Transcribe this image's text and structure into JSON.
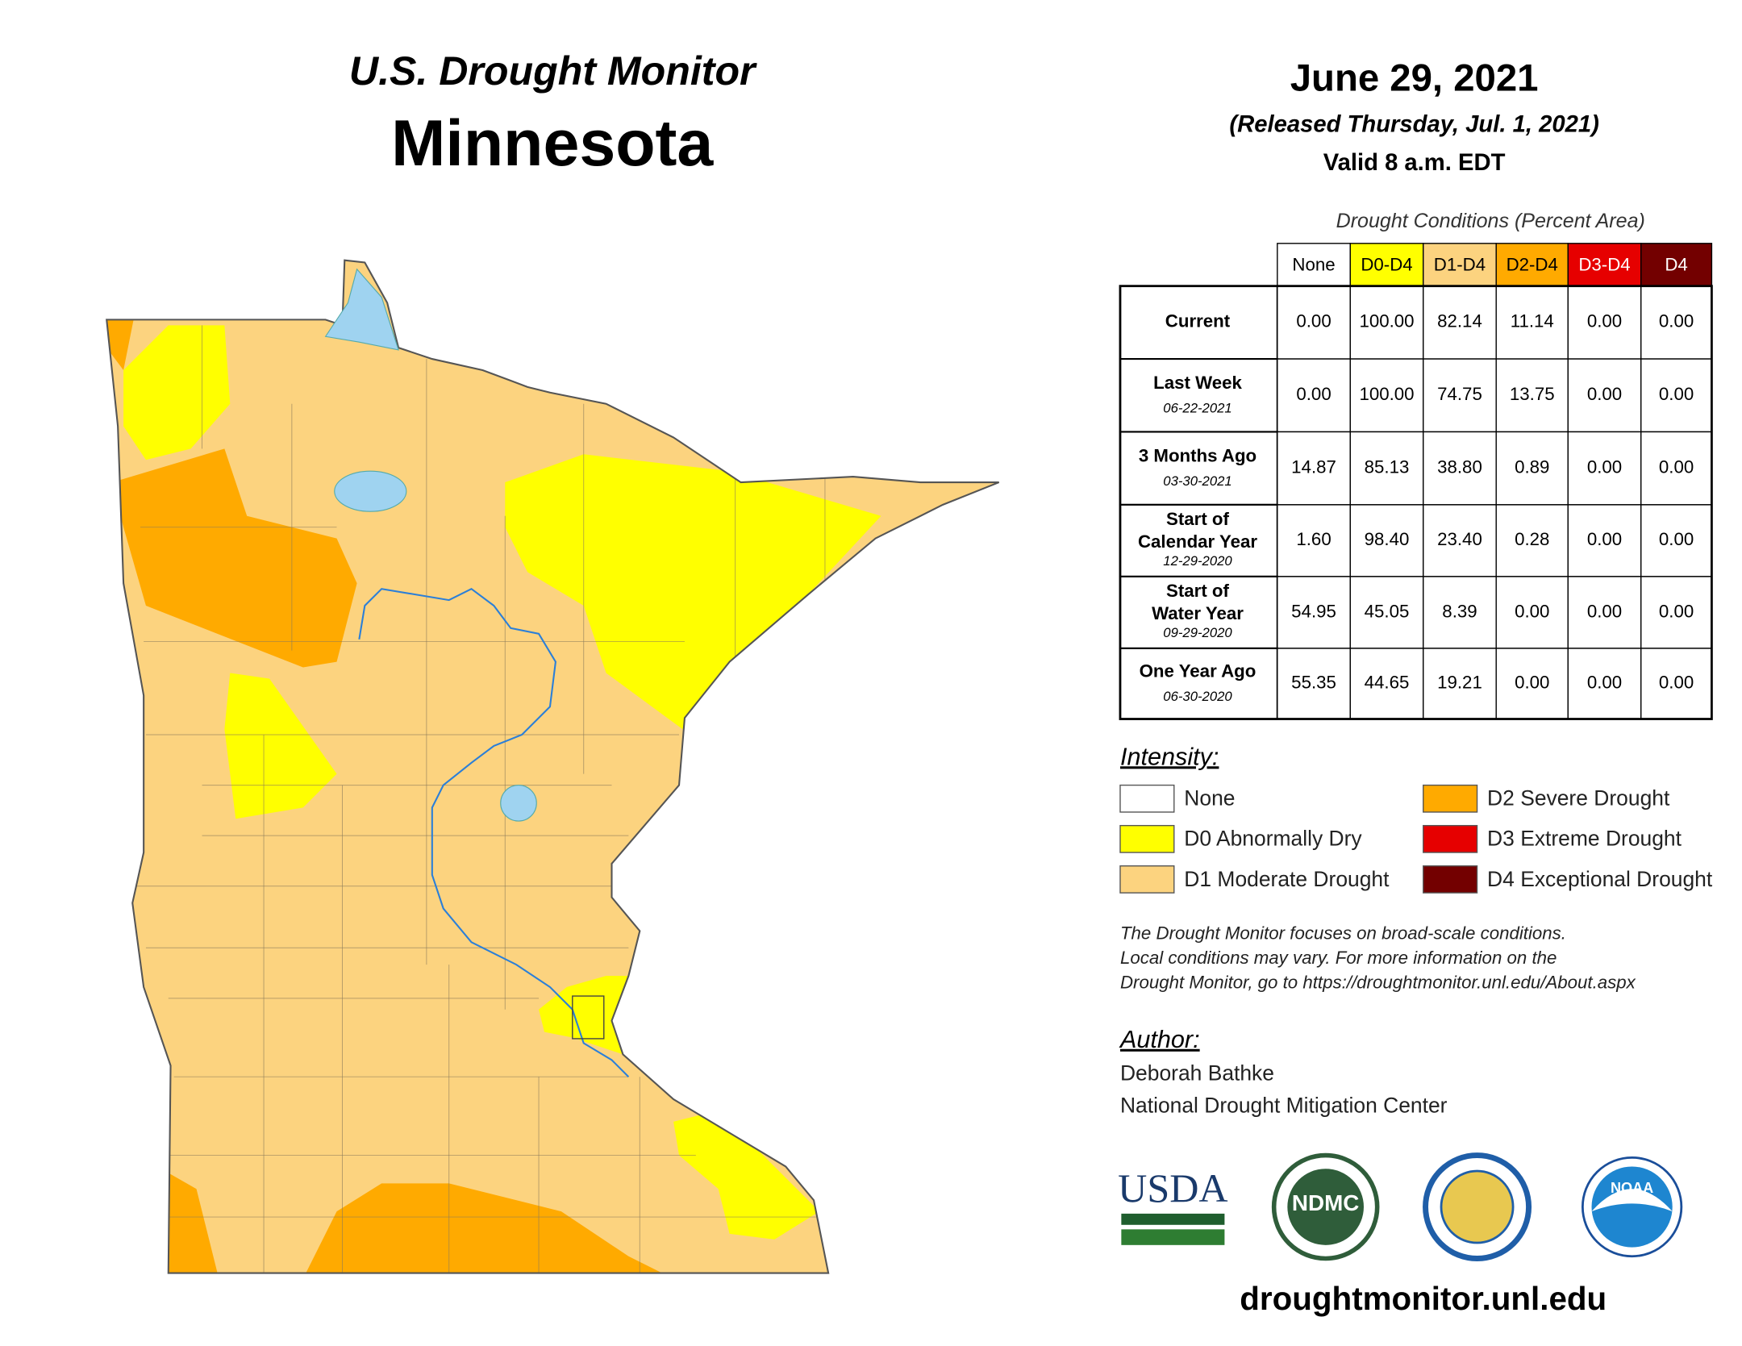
{
  "header": {
    "title": "U.S. Drought Monitor",
    "state": "Minnesota",
    "date": "June 29, 2021",
    "released": "(Released Thursday, Jul. 1, 2021)",
    "valid": "Valid 8 a.m. EDT"
  },
  "table": {
    "caption": "Drought Conditions (Percent Area)",
    "columns": [
      "None",
      "D0-D4",
      "D1-D4",
      "D2-D4",
      "D3-D4",
      "D4"
    ],
    "rows": [
      {
        "label": [
          "Current"
        ],
        "values": [
          "0.00",
          "100.00",
          "82.14",
          "11.14",
          "0.00",
          "0.00"
        ]
      },
      {
        "label": [
          "Last Week"
        ],
        "date": "06-22-2021",
        "values": [
          "0.00",
          "100.00",
          "74.75",
          "13.75",
          "0.00",
          "0.00"
        ]
      },
      {
        "label": [
          "3 Months Ago"
        ],
        "date": "03-30-2021",
        "values": [
          "14.87",
          "85.13",
          "38.80",
          "0.89",
          "0.00",
          "0.00"
        ]
      },
      {
        "label": [
          "Start of",
          "Calendar Year"
        ],
        "date": "12-29-2020",
        "values": [
          "1.60",
          "98.40",
          "23.40",
          "0.28",
          "0.00",
          "0.00"
        ]
      },
      {
        "label": [
          "Start of",
          "Water Year"
        ],
        "date": "09-29-2020",
        "values": [
          "54.95",
          "45.05",
          "8.39",
          "0.00",
          "0.00",
          "0.00"
        ]
      },
      {
        "label": [
          "One Year Ago"
        ],
        "date": "06-30-2020",
        "values": [
          "55.35",
          "44.65",
          "19.21",
          "0.00",
          "0.00",
          "0.00"
        ]
      }
    ]
  },
  "legend": {
    "title": "Intensity:",
    "items": [
      "None",
      "D0 Abnormally Dry",
      "D1 Moderate Drought",
      "D2 Severe Drought",
      "D3 Extreme Drought",
      "D4 Exceptional Drought"
    ]
  },
  "disclaimer": [
    "The Drought Monitor focuses on broad-scale conditions.",
    "Local conditions may vary. For more information on the",
    "Drought Monitor, go to https://droughtmonitor.unl.edu/About.aspx"
  ],
  "author": {
    "title": "Author:",
    "lines": [
      "Deborah Bathke",
      "National Drought Mitigation Center"
    ]
  },
  "logos": [
    "USDA",
    "NDMC",
    "NOAA"
  ],
  "url": "droughtmonitor.unl.edu"
}
